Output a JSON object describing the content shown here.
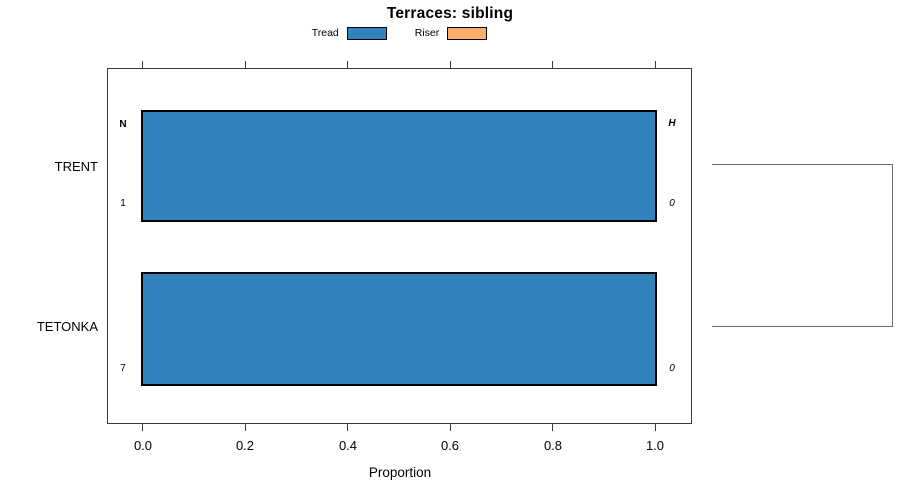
{
  "chart_data": {
    "type": "bar",
    "orientation": "horizontal",
    "title": "Terraces: sibling",
    "xlabel": "Proportion",
    "xlim": [
      0,
      1
    ],
    "x_tick_labels": [
      "0.0",
      "0.2",
      "0.4",
      "0.6",
      "0.8",
      "1.0"
    ],
    "categories": [
      "TRENT",
      "TETONKA"
    ],
    "series": [
      {
        "name": "Tread",
        "color": "#3182bd",
        "values": [
          1.0,
          1.0
        ]
      },
      {
        "name": "Riser",
        "color": "#fdae6b",
        "values": [
          0.0,
          0.0
        ]
      }
    ],
    "annotations": {
      "left_header": "N",
      "right_header": "H",
      "left_values": [
        "1",
        "7"
      ],
      "right_values": [
        "0",
        "0"
      ]
    },
    "legend_position": "top-center",
    "grid": false,
    "extras": "gray bracket in right margin joining the TRENT and TETONKA rows"
  },
  "colors": {
    "tread": "#3182bd",
    "riser": "#fdae6b",
    "bar_border": "#000000",
    "axis_line": "#3a3a3a",
    "bracket": "#6e6e6e",
    "background": "#ffffff"
  },
  "legend": {
    "items": [
      {
        "label": "Tread",
        "color": "#3182bd"
      },
      {
        "label": "Riser",
        "color": "#fdae6b"
      }
    ]
  },
  "rows": [
    {
      "label": "TRENT",
      "left_value": "1",
      "right_value": "0",
      "tread": 1.0
    },
    {
      "label": "TETONKA",
      "left_value": "7",
      "right_value": "0",
      "tread": 1.0
    }
  ]
}
